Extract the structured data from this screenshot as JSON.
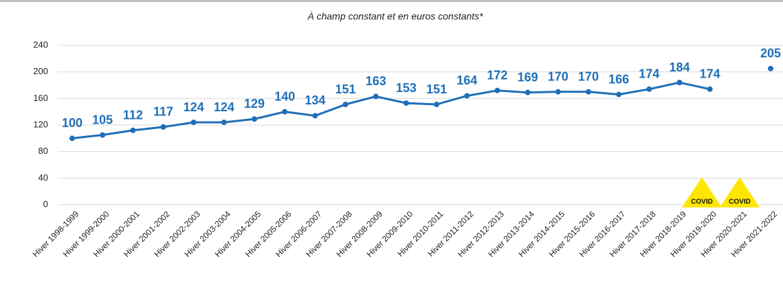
{
  "chart_data": {
    "type": "line",
    "subtitle": "À champ constant et en euros constants*",
    "categories": [
      "Hiver 1998-1999",
      "Hiver 1999-2000",
      "Hiver 2000-2001",
      "Hiver 2001-2002",
      "Hiver 2002-2003",
      "Hiver 2003-2004",
      "Hiver 2004-2005",
      "Hiver 2005-2006",
      "Hiver 2006-2007",
      "Hiver 2007-2008",
      "Hiver 2008-2009",
      "Hiver 2009-2010",
      "Hiver 2010-2011",
      "Hiver 2011-2012",
      "Hiver 2012-2013",
      "Hiver 2013-2014",
      "Hiver 2014-2015",
      "Hiver 2015-2016",
      "Hiver 2016-2017",
      "Hiver 2017-2018",
      "Hiver 2018-2019",
      "Hiver 2019-2020",
      "Hiver 2020-2021",
      "Hiver 2021-2022"
    ],
    "values": [
      100,
      105,
      112,
      117,
      124,
      124,
      129,
      140,
      134,
      151,
      163,
      153,
      151,
      164,
      172,
      169,
      170,
      170,
      166,
      174,
      184,
      174,
      null,
      205
    ],
    "color": "#1f6fb8",
    "ylim": [
      0,
      240
    ],
    "yticks": [
      0,
      40,
      80,
      120,
      160,
      200,
      240
    ],
    "grid": true,
    "annotations": [
      "COVID",
      "COVID"
    ]
  }
}
